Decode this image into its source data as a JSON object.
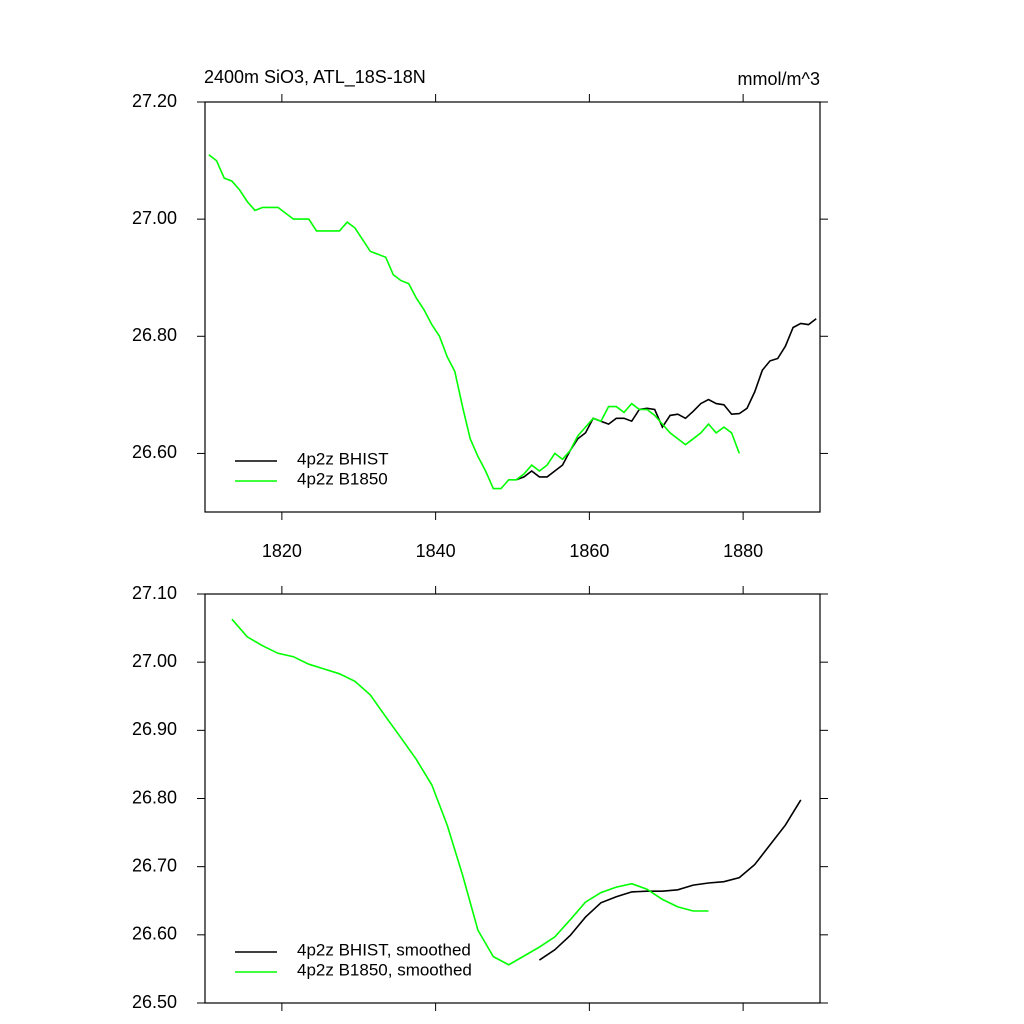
{
  "chart_data": [
    {
      "type": "line",
      "title": "2400m SiO3, ATL_18S-18N",
      "units": "mmol/m^3",
      "xlim": [
        1810,
        1890
      ],
      "xticks": [
        1820,
        1840,
        1860,
        1880
      ],
      "ylim": [
        26.5,
        27.2
      ],
      "yticks": [
        {
          "value": 26.6,
          "label": "26.60"
        },
        {
          "value": 26.8,
          "label": "26.80"
        },
        {
          "value": 27.0,
          "label": "27.00"
        },
        {
          "value": 27.2,
          "label": "27.20"
        }
      ],
      "legend": "lower left",
      "x": [
        1810.5,
        1811.5,
        1812.5,
        1813.5,
        1814.5,
        1815.5,
        1816.5,
        1817.5,
        1818.5,
        1819.5,
        1820.5,
        1821.5,
        1822.5,
        1823.5,
        1824.5,
        1825.5,
        1826.5,
        1827.5,
        1828.5,
        1829.5,
        1830.5,
        1831.5,
        1832.5,
        1833.5,
        1834.5,
        1835.5,
        1836.5,
        1837.5,
        1838.5,
        1839.5,
        1840.5,
        1841.5,
        1842.5,
        1843.5,
        1844.5,
        1845.5,
        1846.5,
        1847.5,
        1848.5,
        1849.5,
        1850.5,
        1851.5,
        1852.5,
        1853.5,
        1854.5,
        1855.5,
        1856.5,
        1857.5,
        1858.5,
        1859.5,
        1860.5,
        1861.5,
        1862.5,
        1863.5,
        1864.5,
        1865.5,
        1866.5,
        1867.5,
        1868.5,
        1869.5,
        1870.5,
        1871.5,
        1872.5,
        1873.5,
        1874.5,
        1875.5,
        1876.5,
        1877.5,
        1878.5,
        1879.5,
        1880.5,
        1881.5,
        1882.5,
        1883.5,
        1884.5,
        1885.5,
        1886.5,
        1887.5,
        1888.5,
        1889.5
      ],
      "series": [
        {
          "name": "4p2z BHIST",
          "color": "#000000",
          "values": [
            null,
            null,
            null,
            null,
            null,
            null,
            null,
            null,
            null,
            null,
            null,
            null,
            null,
            null,
            null,
            null,
            null,
            null,
            null,
            null,
            null,
            null,
            null,
            null,
            null,
            null,
            null,
            null,
            null,
            null,
            null,
            null,
            null,
            null,
            null,
            null,
            null,
            null,
            null,
            null,
            26.555,
            26.56,
            26.57,
            26.56,
            26.56,
            26.57,
            26.58,
            26.605,
            26.625,
            26.635,
            26.66,
            26.655,
            26.65,
            26.66,
            26.66,
            26.655,
            26.675,
            26.677,
            26.675,
            26.645,
            26.665,
            26.667,
            26.66,
            26.672,
            26.685,
            26.692,
            26.685,
            26.683,
            26.667,
            26.668,
            26.677,
            26.705,
            26.742,
            26.758,
            26.762,
            26.783,
            26.815,
            26.822,
            26.82,
            26.83
          ]
        },
        {
          "name": "4p2z B1850",
          "color": "#00ff00",
          "values": [
            27.11,
            27.1,
            27.07,
            27.065,
            27.05,
            27.03,
            27.015,
            27.02,
            27.02,
            27.02,
            27.01,
            27.0,
            27.0,
            27.0,
            26.98,
            26.98,
            26.98,
            26.98,
            26.995,
            26.985,
            26.965,
            26.945,
            26.94,
            26.935,
            26.905,
            26.895,
            26.89,
            26.865,
            26.845,
            26.82,
            26.8,
            26.765,
            26.74,
            26.68,
            26.625,
            26.595,
            26.57,
            26.54,
            26.54,
            26.555,
            26.555,
            26.565,
            26.58,
            26.57,
            26.58,
            26.6,
            26.59,
            26.605,
            26.63,
            26.645,
            26.66,
            26.655,
            26.68,
            26.68,
            26.67,
            26.685,
            26.675,
            26.675,
            26.665,
            26.65,
            26.635,
            26.625,
            26.615,
            26.625,
            26.635,
            26.65,
            26.635,
            26.645,
            26.635,
            26.6,
            null,
            null,
            null,
            null,
            null,
            null,
            null,
            null,
            null,
            null
          ]
        }
      ]
    },
    {
      "type": "line",
      "xlim": [
        1810,
        1890
      ],
      "xticks": [
        1820,
        1840,
        1860,
        1880
      ],
      "ylim": [
        26.5,
        27.1
      ],
      "yticks": [
        {
          "value": 26.5,
          "label": "26.50"
        },
        {
          "value": 26.6,
          "label": "26.60"
        },
        {
          "value": 26.7,
          "label": "26.70"
        },
        {
          "value": 26.8,
          "label": "26.80"
        },
        {
          "value": 26.9,
          "label": "26.90"
        },
        {
          "value": 27.0,
          "label": "27.00"
        },
        {
          "value": 27.1,
          "label": "27.10"
        }
      ],
      "legend": "lower left",
      "x": [
        1813.5,
        1815.5,
        1817.5,
        1819.5,
        1821.5,
        1823.5,
        1825.5,
        1827.5,
        1829.5,
        1831.5,
        1833.5,
        1835.5,
        1837.5,
        1839.5,
        1841.5,
        1843.5,
        1845.5,
        1847.5,
        1849.5,
        1851.5,
        1853.5,
        1855.5,
        1857.5,
        1859.5,
        1861.5,
        1863.5,
        1865.5,
        1867.5,
        1869.5,
        1871.5,
        1873.5,
        1875.5,
        1877.5,
        1879.5,
        1881.5,
        1883.5,
        1885.5,
        1887.5
      ],
      "series": [
        {
          "name": "4p2z BHIST, smoothed",
          "color": "#000000",
          "values": [
            null,
            null,
            null,
            null,
            null,
            null,
            null,
            null,
            null,
            null,
            null,
            null,
            null,
            null,
            null,
            null,
            null,
            null,
            null,
            null,
            26.563,
            26.578,
            26.599,
            26.626,
            26.647,
            26.656,
            26.663,
            26.664,
            26.664,
            26.666,
            26.673,
            26.676,
            26.678,
            26.684,
            26.703,
            26.732,
            26.761,
            26.798
          ]
        },
        {
          "name": "4p2z B1850, smoothed",
          "color": "#00ff00",
          "values": [
            27.063,
            27.037,
            27.024,
            27.013,
            27.008,
            26.997,
            26.99,
            26.983,
            26.972,
            26.952,
            26.92,
            26.889,
            26.857,
            26.82,
            26.761,
            26.688,
            26.607,
            26.568,
            26.556,
            26.569,
            26.582,
            26.597,
            26.622,
            26.648,
            26.662,
            26.67,
            26.675,
            26.667,
            26.652,
            26.641,
            26.635,
            26.635,
            null,
            null,
            null,
            null,
            null,
            null
          ]
        }
      ]
    }
  ]
}
